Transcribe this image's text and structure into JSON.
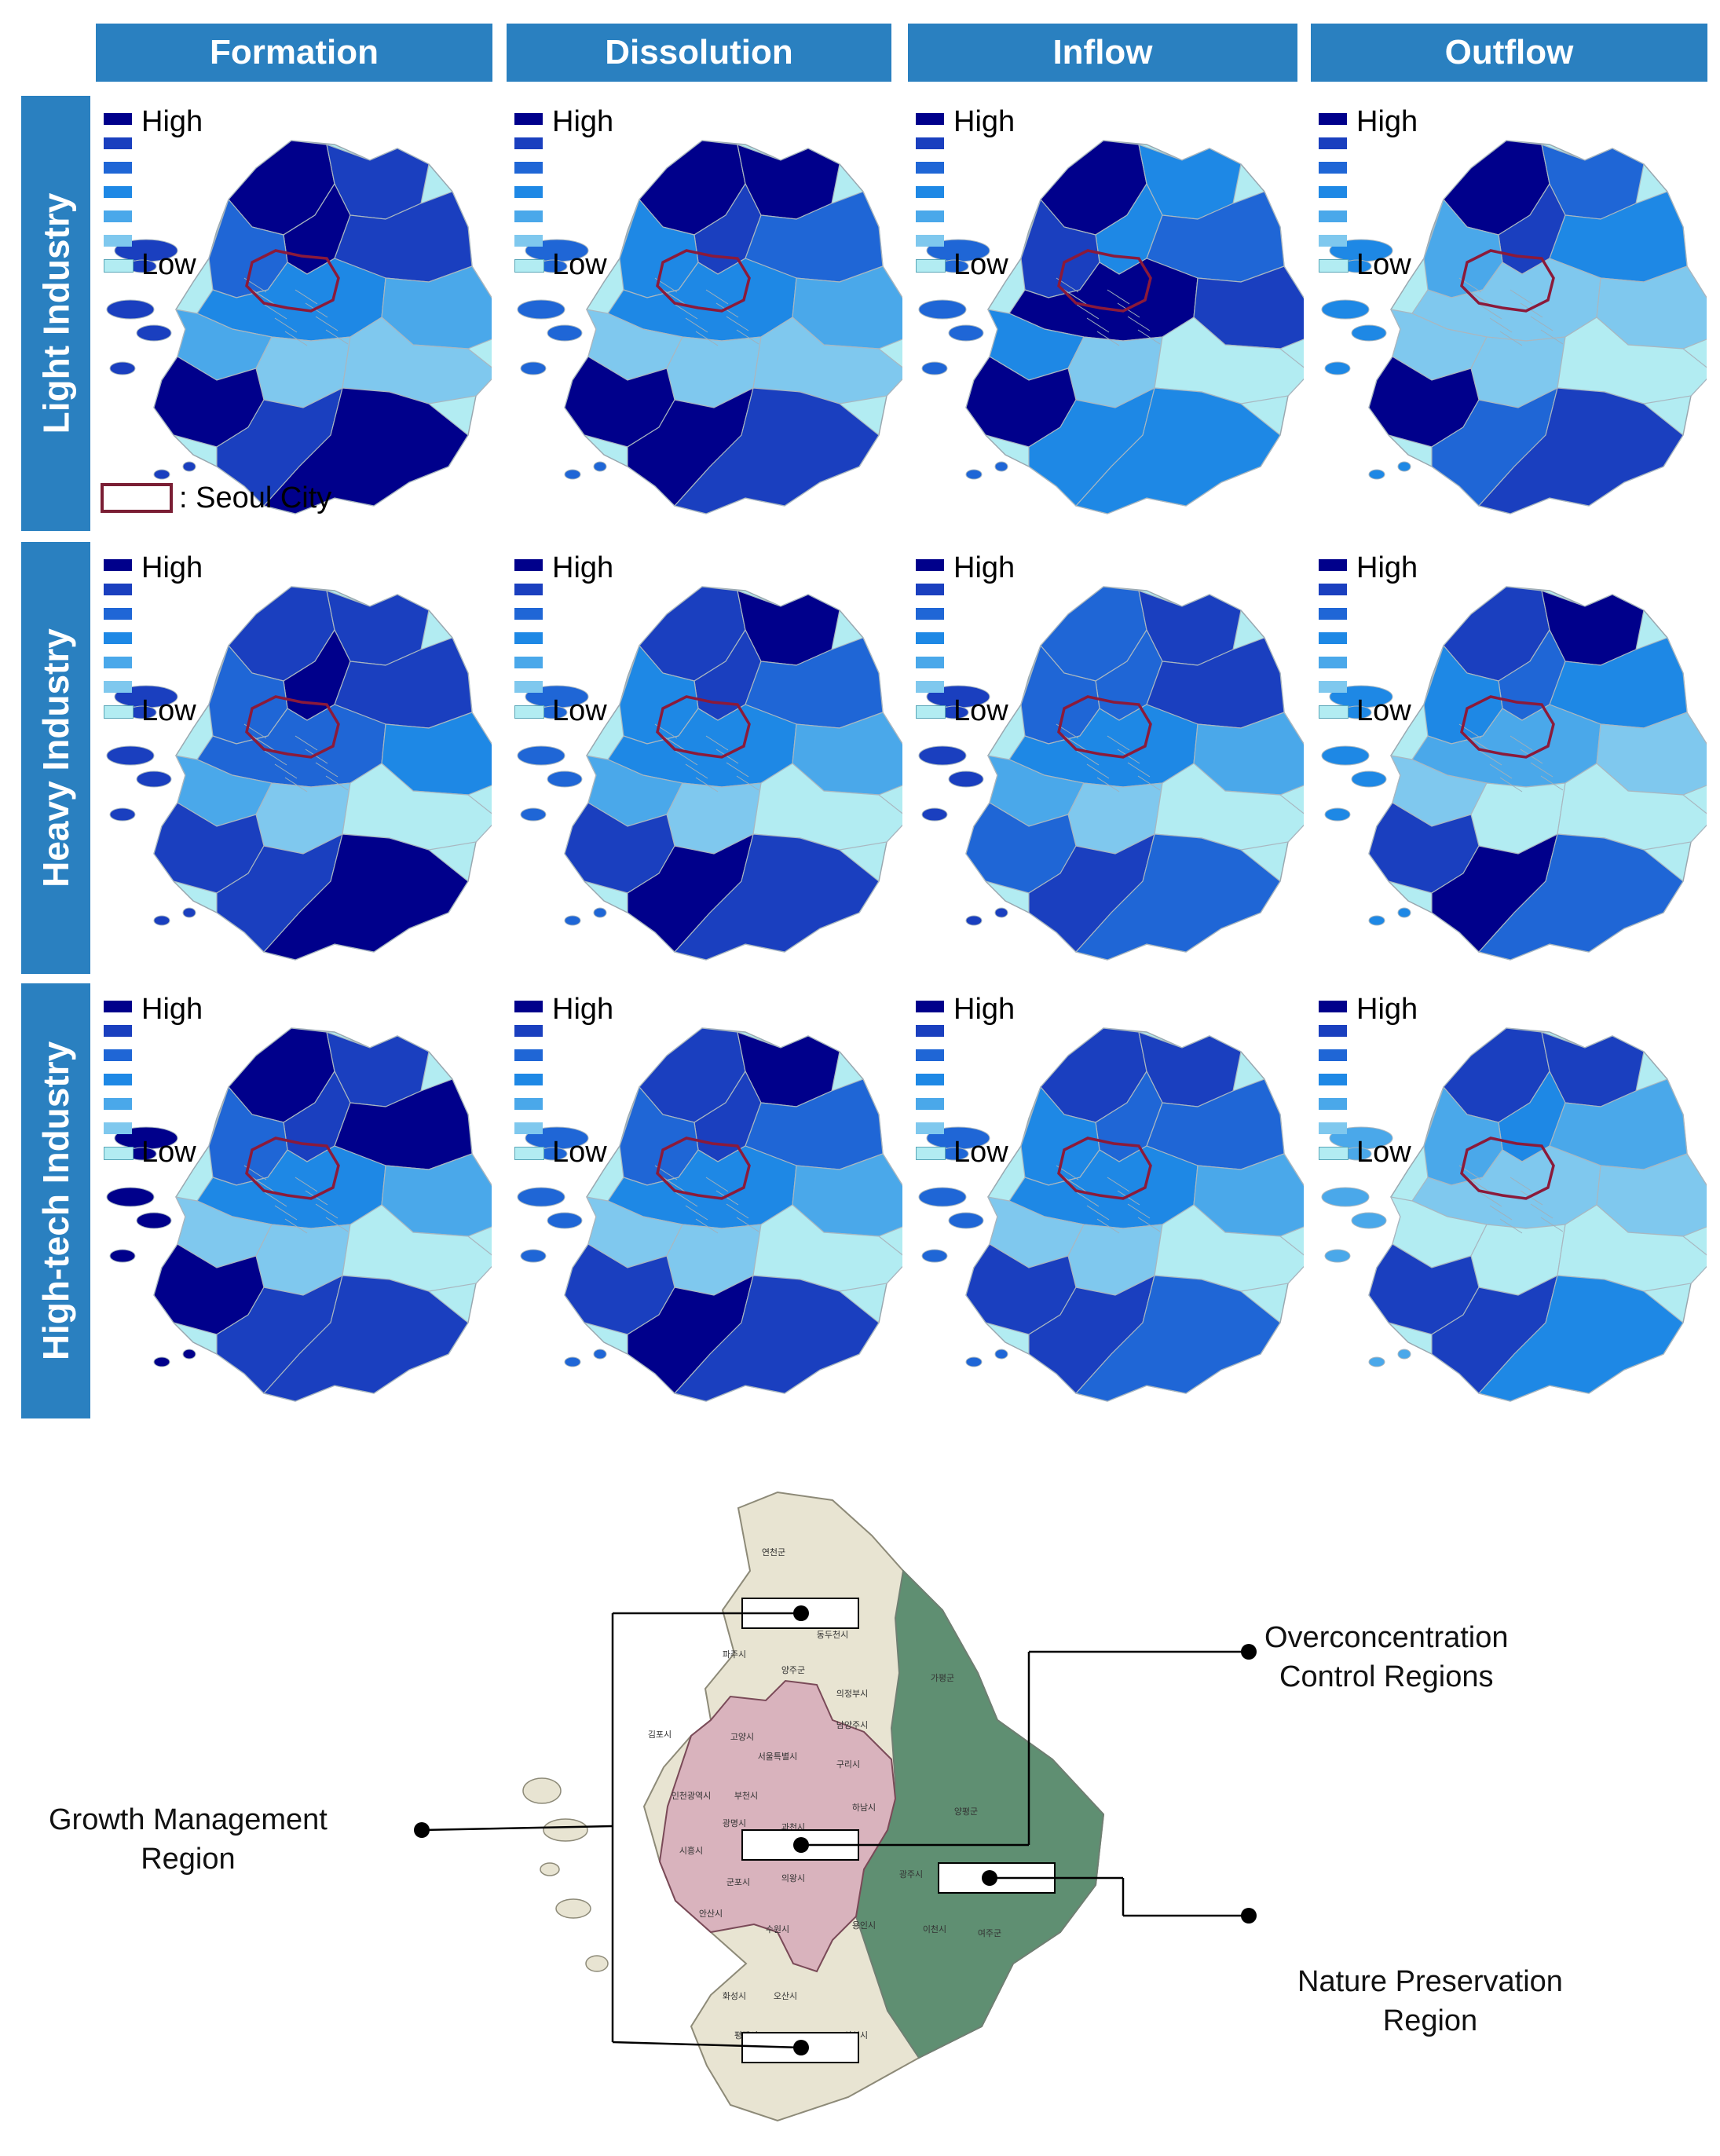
{
  "columns": [
    "Formation",
    "Dissolution",
    "Inflow",
    "Outflow"
  ],
  "rows": [
    "Light Industry",
    "Heavy Industry",
    "High-tech Industry"
  ],
  "legend": {
    "high_label": "High",
    "low_label": "Low",
    "scale_colors": [
      "#00008b",
      "#1a3fbf",
      "#1f66d6",
      "#1e88e5",
      "#4aa8ea",
      "#7fc8ee",
      "#b2ecf2"
    ]
  },
  "seoul_legend": {
    "label": ": Seoul City"
  },
  "choropleth_levels": [
    [
      [
        6,
        5,
        6,
        5,
        4,
        3,
        2,
        2,
        1,
        1
      ],
      [
        6,
        6,
        5,
        4,
        3,
        3,
        2,
        1,
        1,
        1
      ],
      [
        6,
        3,
        3,
        4,
        5,
        6,
        5,
        3,
        1,
        0
      ],
      [
        6,
        4,
        5,
        3,
        2,
        1,
        1,
        1,
        1,
        0
      ]
    ],
    [
      [
        5,
        5,
        6,
        5,
        4,
        4,
        3,
        2,
        1,
        0
      ],
      [
        5,
        6,
        5,
        4,
        3,
        3,
        2,
        2,
        1,
        0
      ],
      [
        4,
        5,
        4,
        5,
        4,
        3,
        2,
        2,
        1,
        0
      ],
      [
        5,
        6,
        4,
        3,
        3,
        2,
        1,
        1,
        0,
        0
      ]
    ],
    [
      [
        6,
        5,
        5,
        6,
        4,
        3,
        2,
        1,
        1,
        0
      ],
      [
        5,
        6,
        5,
        4,
        4,
        3,
        2,
        1,
        1,
        0
      ],
      [
        5,
        5,
        4,
        4,
        3,
        3,
        2,
        1,
        1,
        0
      ],
      [
        5,
        5,
        3,
        2,
        2,
        1,
        1,
        0,
        0,
        0
      ]
    ]
  ],
  "bottom_map": {
    "callouts": {
      "overconcentration": [
        "Overconcentration",
        "Control  Regions"
      ],
      "growth": [
        "Growth  Management",
        "Region"
      ],
      "nature": [
        "Nature  Preservation",
        "Region"
      ]
    },
    "zone_colors": {
      "growth": "#e8e4d2",
      "overconcentration": "#d9b3bd",
      "nature": "#5f8f72"
    },
    "place_names": [
      "연천군",
      "포천군",
      "동두천시",
      "파주시",
      "양주군",
      "의정부시",
      "가평군",
      "김포시",
      "고양시",
      "남양주시",
      "구리시",
      "서울특별시",
      "인천광역시",
      "부천시",
      "하남시",
      "양평군",
      "광명시",
      "과천시",
      "시흥시",
      "안양시",
      "성남시",
      "광주시",
      "군포시",
      "의왕시",
      "안산시",
      "수원시",
      "용인시",
      "이천시",
      "여주군",
      "화성시",
      "오산시",
      "평택시",
      "안성시"
    ]
  }
}
